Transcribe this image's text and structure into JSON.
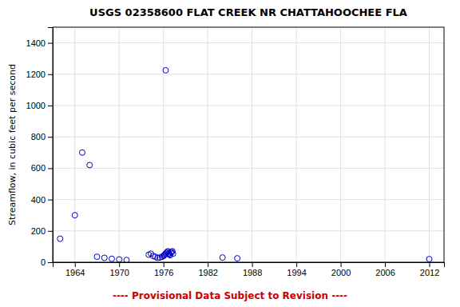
{
  "chart_data": {
    "type": "scatter",
    "title": "USGS 02358600  FLAT CREEK NR CHATTAHOOCHEE FLA",
    "y_label": "Streamflow, in cubic feet per second",
    "x": [
      1962,
      1964,
      1965,
      1966,
      1967,
      1968,
      1969,
      1970,
      1971,
      1974,
      1974.3,
      1974.6,
      1974.9,
      1975.2,
      1975.5,
      1975.8,
      1976.0,
      1976.1,
      1976.2,
      1976.3,
      1976.4,
      1976.5,
      1976.6,
      1976.7,
      1976.8,
      1976.9,
      1977.0,
      1977.1,
      1977.2,
      1977.3,
      1976.3,
      1984,
      1986,
      2012
    ],
    "values": [
      150,
      300,
      700,
      620,
      35,
      28,
      22,
      18,
      14,
      48,
      55,
      40,
      35,
      28,
      30,
      35,
      40,
      45,
      50,
      55,
      60,
      65,
      70,
      55,
      50,
      45,
      60,
      65,
      70,
      55,
      1225,
      30,
      25,
      20
    ],
    "color": "#0000cc",
    "marker": "open-circle",
    "xlim": [
      1961,
      2014
    ],
    "ylim": [
      0,
      1500
    ],
    "xticks": [
      1964,
      1970,
      1976,
      1982,
      1988,
      1994,
      2000,
      2006,
      2012
    ],
    "yticks": [
      0,
      200,
      400,
      600,
      800,
      1000,
      1200,
      1400
    ],
    "grid": true,
    "annotations": [
      {
        "text": "---- Provisional Data Subject to Revision ----",
        "color": "#cc0000"
      }
    ]
  }
}
